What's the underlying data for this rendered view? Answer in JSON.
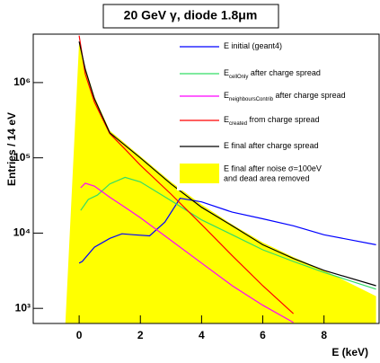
{
  "chart_data": {
    "type": "line",
    "title": "20 GeV γ, diode 1.8μm",
    "x_label": "E (keV)",
    "y_label": "Entries / 14 eV",
    "log_y": true,
    "xlim": [
      -1.5,
      9.8
    ],
    "ylim": [
      630,
      4400000
    ],
    "xticks": [
      0,
      2,
      4,
      6,
      8
    ],
    "yticks": [
      {
        "value": 1000,
        "label": "10³"
      },
      {
        "value": 10000,
        "label": "10⁴"
      },
      {
        "value": 100000,
        "label": "10⁵"
      },
      {
        "value": 1000000,
        "label": "10⁶"
      }
    ],
    "fill_series": {
      "name": [
        "E final after noise  σ=100eV",
        "and dead area removed"
      ],
      "color": "#ffff00",
      "x": [
        -0.45,
        0,
        0.2,
        0.5,
        1,
        2,
        3,
        4,
        5,
        6,
        7,
        8,
        9.7
      ],
      "values": [
        630,
        3500000,
        1600000,
        650000,
        230000,
        105000,
        48000,
        24000,
        13000,
        7500,
        4800,
        3200,
        1450
      ]
    },
    "series": [
      {
        "name": "E",
        "subscript": "",
        "suffix": " initial (geant4)",
        "color": "#0000ff",
        "x": [
          0,
          0.1,
          0.5,
          1,
          1.4,
          1.8,
          2.3,
          2.8,
          3.3,
          4,
          5,
          6,
          7,
          8,
          9.7
        ],
        "values": [
          4000,
          4200,
          6500,
          8500,
          9800,
          9500,
          9200,
          14000,
          29000,
          26000,
          19000,
          15500,
          12500,
          9500,
          7000
        ]
      },
      {
        "name": "E",
        "subscript": "cellOnly",
        "suffix": " after charge spread",
        "color": "#33dd66",
        "x": [
          0.05,
          0.3,
          0.6,
          1,
          1.5,
          2,
          3,
          4,
          5,
          6,
          7,
          8,
          9.7
        ],
        "values": [
          20000,
          28000,
          32000,
          45000,
          55000,
          48000,
          27000,
          15000,
          9500,
          6000,
          4200,
          3000,
          1800
        ]
      },
      {
        "name": "E",
        "subscript": "neighboursContrib",
        "suffix": " after charge spread",
        "color": "#ff00ff",
        "x": [
          0.05,
          0.2,
          0.5,
          1,
          1.5,
          2,
          3,
          4,
          5,
          6,
          7
        ],
        "values": [
          40000,
          46000,
          42000,
          30000,
          22000,
          16000,
          8000,
          4000,
          2000,
          1100,
          650
        ]
      },
      {
        "name": "E",
        "subscript": "created",
        "suffix": " from charge spread",
        "color": "#ff0000",
        "x": [
          0,
          0.2,
          0.5,
          1,
          1.5,
          2,
          3,
          4,
          5,
          6,
          7
        ],
        "values": [
          4200000,
          1300000,
          550000,
          210000,
          130000,
          80000,
          33000,
          13000,
          5000,
          2000,
          850
        ]
      },
      {
        "name": "E",
        "subscript": "",
        "suffix": " final after charge spread",
        "color": "#000000",
        "x": [
          0,
          0.2,
          0.5,
          1,
          2,
          3,
          4,
          5,
          6,
          7,
          8,
          9.7
        ],
        "values": [
          3500000,
          1500000,
          610000,
          215000,
          100000,
          45000,
          22000,
          12500,
          7000,
          4600,
          3200,
          2000
        ]
      }
    ]
  }
}
